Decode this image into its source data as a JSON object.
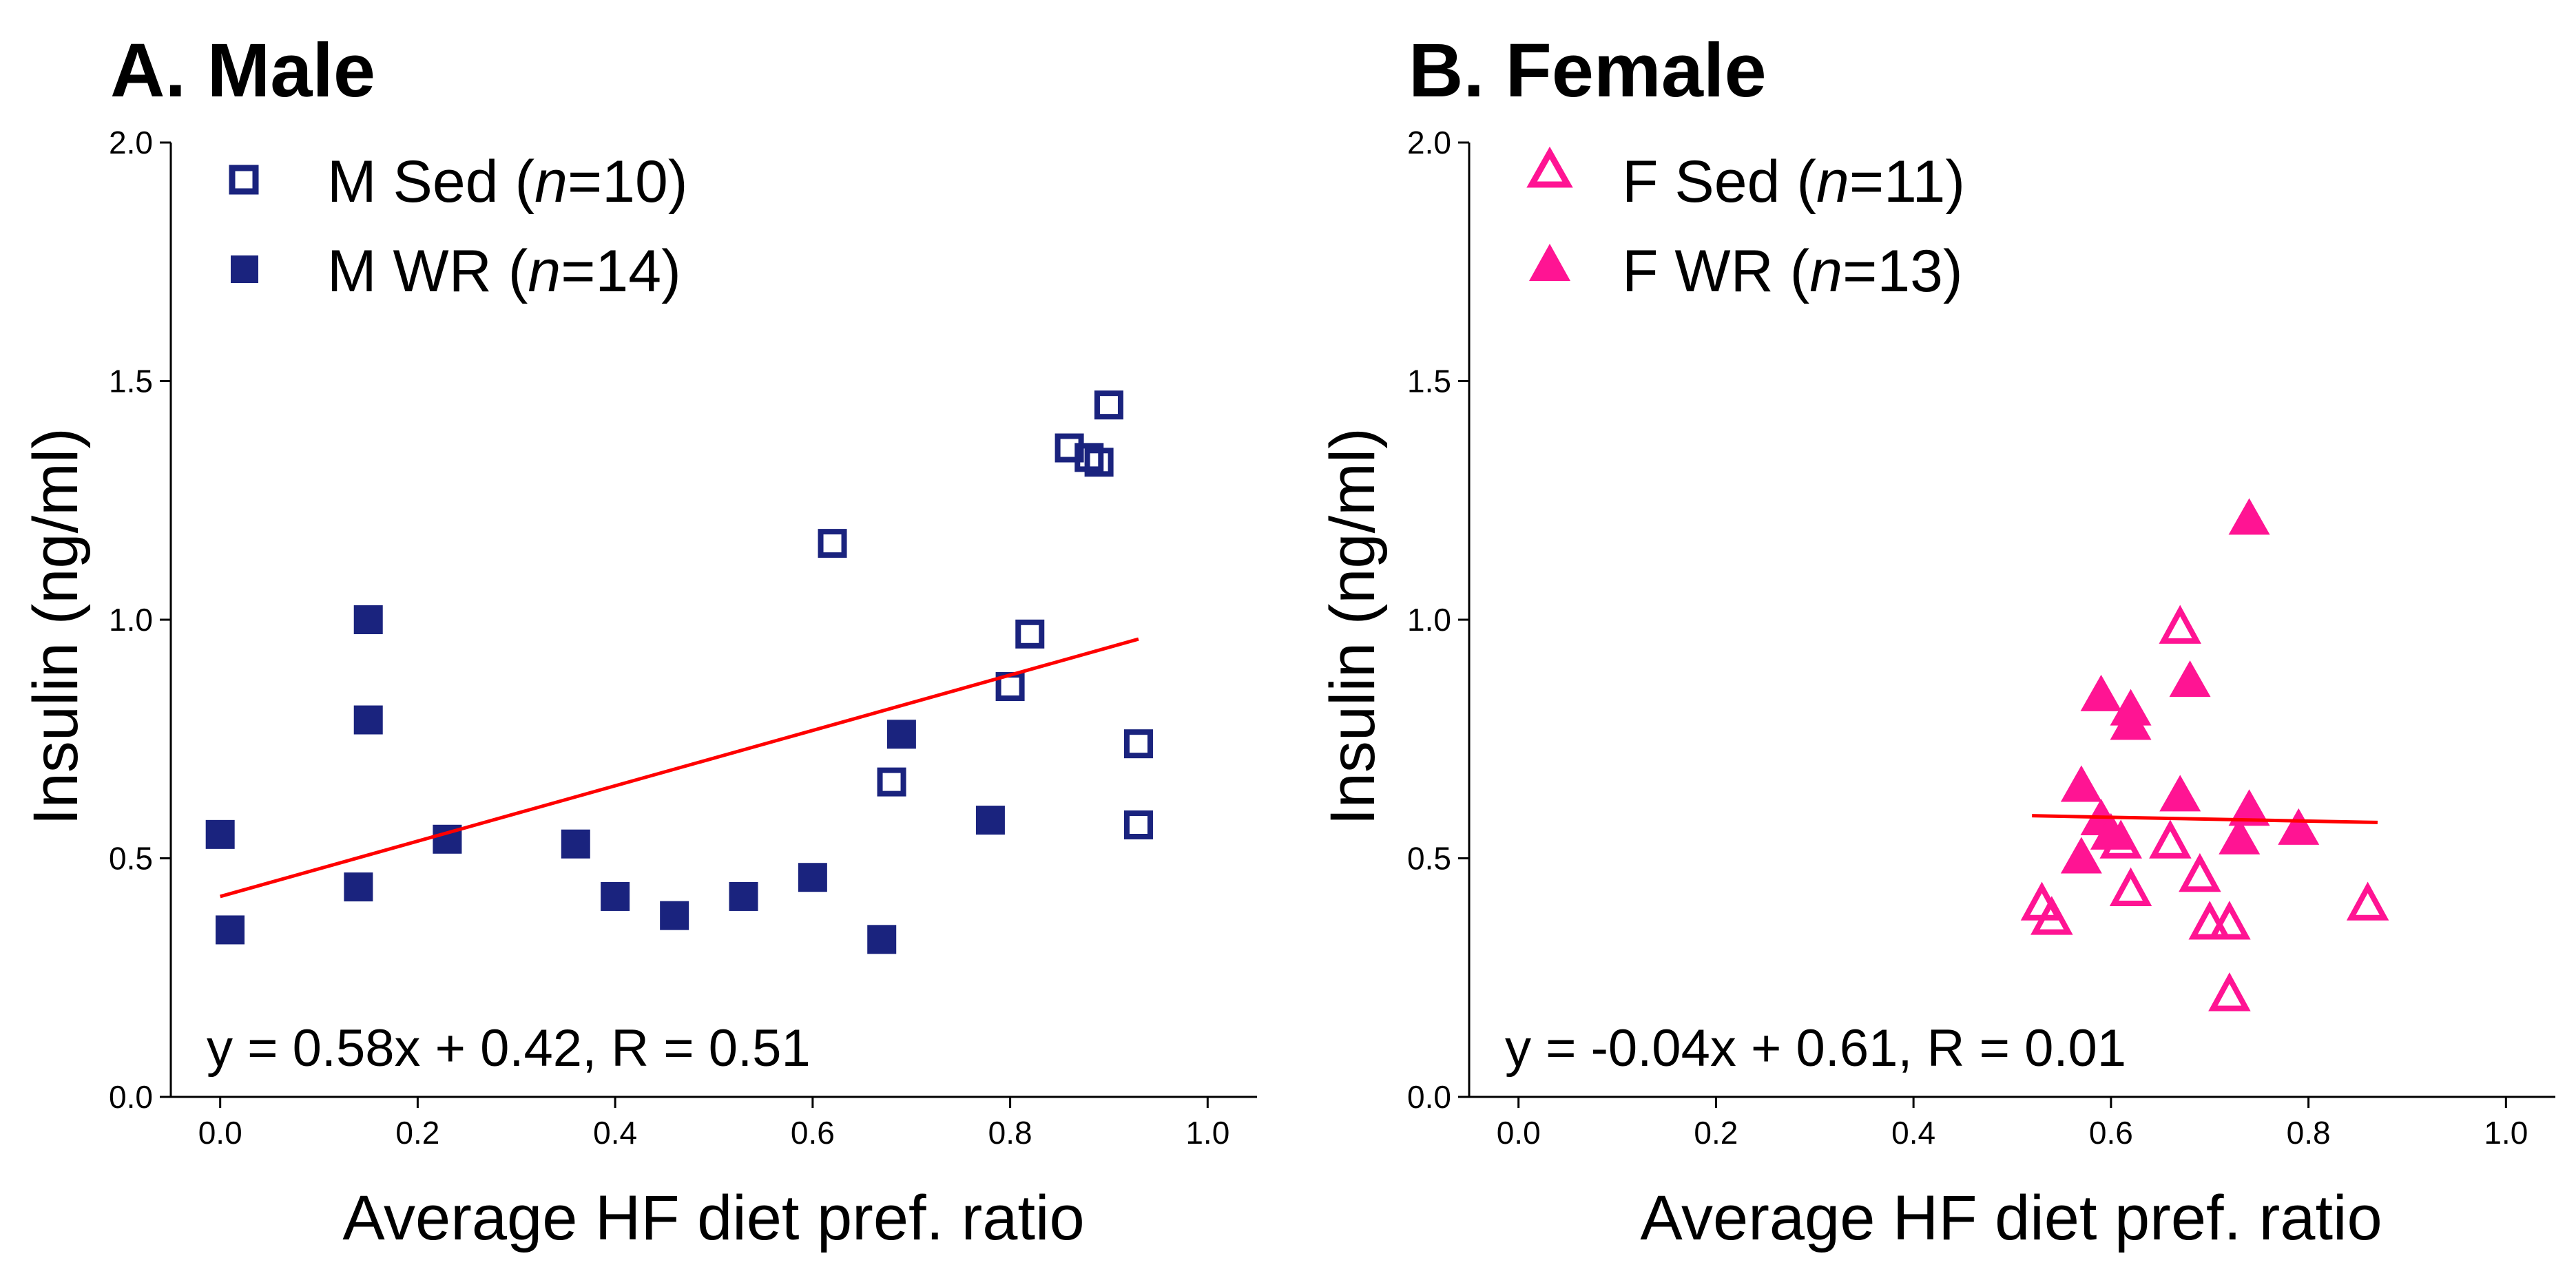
{
  "chart_data": [
    {
      "type": "scatter",
      "panel_label": "A.",
      "title": "Male",
      "xlabel": "Average HF diet pref. ratio",
      "ylabel": "Insulin (ng/ml)",
      "xlim": [
        -0.05,
        1.05
      ],
      "ylim": [
        0.0,
        2.0
      ],
      "xticks": [
        0.0,
        0.2,
        0.4,
        0.6,
        0.8,
        1.0
      ],
      "yticks": [
        0.0,
        0.5,
        1.0,
        1.5,
        2.0
      ],
      "xtick_labels": [
        "0.0",
        "0.2",
        "0.4",
        "0.6",
        "0.8",
        "1.0"
      ],
      "ytick_labels": [
        "0.0",
        "0.5",
        "1.0",
        "1.5",
        "2.0"
      ],
      "legend_position": "top-left",
      "color": "#1a237e",
      "series": [
        {
          "name": "M Sed",
          "legend_prefix": "M Sed (",
          "n_symbol": "n",
          "n_value": "=10)",
          "marker": "square-open",
          "points": [
            [
              0.62,
              1.16
            ],
            [
              0.86,
              1.36
            ],
            [
              0.88,
              1.34
            ],
            [
              0.89,
              1.33
            ],
            [
              0.9,
              1.45
            ],
            [
              0.8,
              0.86
            ],
            [
              0.82,
              0.97
            ],
            [
              0.68,
              0.66
            ],
            [
              0.93,
              0.74
            ],
            [
              0.93,
              0.57
            ]
          ]
        },
        {
          "name": "M WR",
          "legend_prefix": "M WR (",
          "n_symbol": "n",
          "n_value": "=14)",
          "marker": "square-filled",
          "points": [
            [
              0.0,
              0.55
            ],
            [
              0.01,
              0.35
            ],
            [
              0.14,
              0.44
            ],
            [
              0.15,
              1.0
            ],
            [
              0.15,
              0.79
            ],
            [
              0.23,
              0.54
            ],
            [
              0.36,
              0.53
            ],
            [
              0.4,
              0.42
            ],
            [
              0.46,
              0.38
            ],
            [
              0.53,
              0.42
            ],
            [
              0.6,
              0.46
            ],
            [
              0.67,
              0.33
            ],
            [
              0.69,
              0.76
            ],
            [
              0.78,
              0.58
            ]
          ]
        }
      ],
      "fit": {
        "slope": 0.58,
        "intercept": 0.42,
        "x_range": [
          0.0,
          0.93
        ],
        "color": "#ff0000"
      },
      "equation": "y = 0.58x + 0.42, R = 0.51"
    },
    {
      "type": "scatter",
      "panel_label": "B.",
      "title": "Female",
      "xlabel": "Average HF diet pref. ratio",
      "ylabel": "Insulin (ng/ml)",
      "xlim": [
        -0.05,
        1.05
      ],
      "ylim": [
        0.0,
        2.0
      ],
      "xticks": [
        0.0,
        0.2,
        0.4,
        0.6,
        0.8,
        1.0
      ],
      "yticks": [
        0.0,
        0.5,
        1.0,
        1.5,
        2.0
      ],
      "xtick_labels": [
        "0.0",
        "0.2",
        "0.4",
        "0.6",
        "0.8",
        "1.0"
      ],
      "ytick_labels": [
        "0.0",
        "0.5",
        "1.0",
        "1.5",
        "2.0"
      ],
      "legend_position": "top-left",
      "color": "#ff1493",
      "series": [
        {
          "name": "F Sed",
          "legend_prefix": "F Sed (",
          "n_symbol": "n",
          "n_value": "=11)",
          "marker": "triangle-open",
          "points": [
            [
              0.67,
              0.98
            ],
            [
              0.53,
              0.4
            ],
            [
              0.54,
              0.37
            ],
            [
              0.62,
              0.43
            ],
            [
              0.66,
              0.53
            ],
            [
              0.69,
              0.46
            ],
            [
              0.7,
              0.36
            ],
            [
              0.72,
              0.36
            ],
            [
              0.72,
              0.21
            ],
            [
              0.86,
              0.4
            ],
            [
              0.61,
              0.53
            ]
          ]
        },
        {
          "name": "F WR",
          "legend_prefix": "F WR (",
          "n_symbol": "n",
          "n_value": "=13)",
          "marker": "triangle-filled",
          "points": [
            [
              0.74,
              1.21
            ],
            [
              0.59,
              0.84
            ],
            [
              0.68,
              0.87
            ],
            [
              0.62,
              0.81
            ],
            [
              0.62,
              0.78
            ],
            [
              0.57,
              0.65
            ],
            [
              0.67,
              0.63
            ],
            [
              0.59,
              0.58
            ],
            [
              0.74,
              0.6
            ],
            [
              0.6,
              0.55
            ],
            [
              0.79,
              0.56
            ],
            [
              0.73,
              0.54
            ],
            [
              0.57,
              0.5
            ]
          ]
        }
      ],
      "fit": {
        "slope": -0.04,
        "intercept": 0.61,
        "x_range": [
          0.52,
          0.87
        ],
        "color": "#ff0000"
      },
      "equation": "y = -0.04x + 0.61, R = 0.01"
    }
  ]
}
